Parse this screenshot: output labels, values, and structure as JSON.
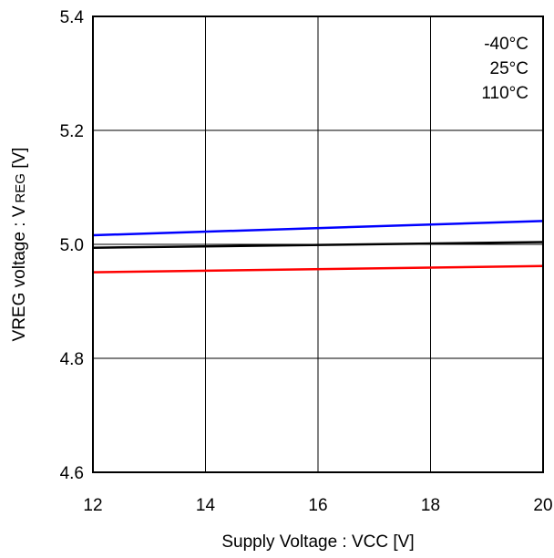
{
  "chart_data": {
    "type": "line",
    "title": "",
    "xlabel": "Supply Voltage : VCC [V]",
    "ylabel_main": "VREG voltage : V",
    "ylabel_sub": "REG",
    "ylabel_unit": " [V]",
    "xlim": [
      12,
      20
    ],
    "ylim": [
      4.6,
      5.4
    ],
    "x_ticks": [
      "12",
      "14",
      "16",
      "18",
      "20"
    ],
    "y_ticks": [
      "4.6",
      "4.8",
      "5.0",
      "5.2",
      "5.4"
    ],
    "grid": true,
    "legend_position": "top-right",
    "series": [
      {
        "name": "-40°C",
        "color": "#ff0000",
        "x": [
          12,
          20
        ],
        "y": [
          4.951,
          4.962
        ]
      },
      {
        "name": "25°C",
        "color": "#000000",
        "x": [
          12,
          20
        ],
        "y": [
          4.994,
          5.004
        ]
      },
      {
        "name": "110°C",
        "color": "#0000ff",
        "x": [
          12,
          20
        ],
        "y": [
          5.016,
          5.041
        ]
      }
    ]
  }
}
